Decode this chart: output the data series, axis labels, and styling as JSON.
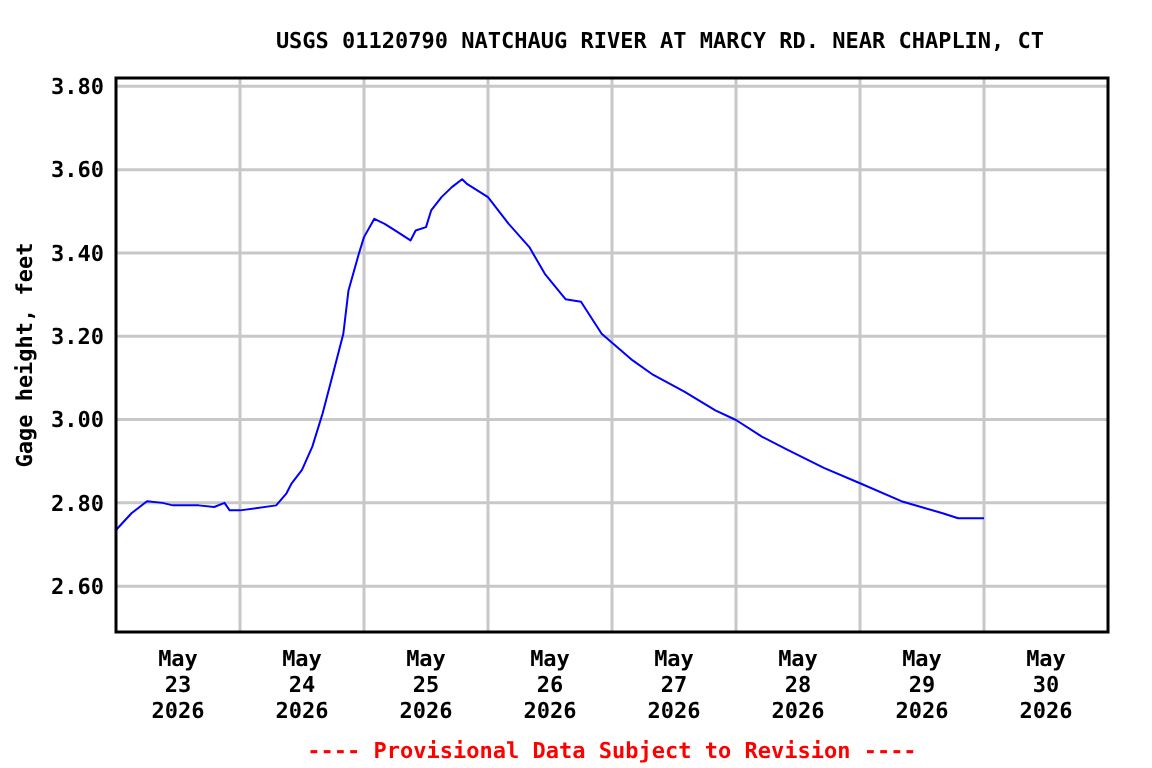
{
  "chart_data": {
    "type": "line",
    "title": "USGS 01120790 NATCHAUG RIVER AT MARCY RD. NEAR CHAPLIN, CT",
    "ylabel": "Gage height, feet",
    "annotations": [
      "---- Provisional Data Subject to Revision ----"
    ],
    "x": [
      "2026-05-23T00:00",
      "2026-05-23T03:00",
      "2026-05-23T06:00",
      "2026-05-23T09:00",
      "2026-05-23T11:00",
      "2026-05-23T16:00",
      "2026-05-23T19:00",
      "2026-05-23T21:00",
      "2026-05-23T22:00",
      "2026-05-24T00:00",
      "2026-05-24T07:00",
      "2026-05-24T09:00",
      "2026-05-24T10:00",
      "2026-05-24T12:00",
      "2026-05-24T14:00",
      "2026-05-24T16:00",
      "2026-05-24T18:00",
      "2026-05-24T20:00",
      "2026-05-24T21:00",
      "2026-05-24T23:00",
      "2026-05-25T00:00",
      "2026-05-25T02:00",
      "2026-05-25T04:00",
      "2026-05-25T06:00",
      "2026-05-25T09:00",
      "2026-05-25T10:00",
      "2026-05-25T12:00",
      "2026-05-25T13:00",
      "2026-05-25T15:00",
      "2026-05-25T17:00",
      "2026-05-25T19:00",
      "2026-05-25T20:00",
      "2026-05-26T00:00",
      "2026-05-26T04:00",
      "2026-05-26T08:00",
      "2026-05-26T11:00",
      "2026-05-26T15:00",
      "2026-05-26T18:00",
      "2026-05-26T22:00",
      "2026-05-27T04:00",
      "2026-05-27T08:00",
      "2026-05-27T14:00",
      "2026-05-27T20:00",
      "2026-05-28T00:00",
      "2026-05-28T05:00",
      "2026-05-28T10:00",
      "2026-05-28T17:00",
      "2026-05-29T00:00",
      "2026-05-29T08:00",
      "2026-05-29T16:00",
      "2026-05-29T19:00",
      "2026-05-30T00:00"
    ],
    "series": [
      {
        "color": "#0000ff",
        "values": [
          2.735,
          2.775,
          2.804,
          2.8,
          2.794,
          2.794,
          2.79,
          2.8,
          2.782,
          2.782,
          2.794,
          2.823,
          2.847,
          2.879,
          2.935,
          3.015,
          3.11,
          3.206,
          3.31,
          3.398,
          3.438,
          3.482,
          3.47,
          3.454,
          3.43,
          3.454,
          3.462,
          3.502,
          3.534,
          3.558,
          3.577,
          3.565,
          3.534,
          3.47,
          3.414,
          3.35,
          3.289,
          3.283,
          3.206,
          3.142,
          3.107,
          3.067,
          3.022,
          2.999,
          2.959,
          2.927,
          2.884,
          2.847,
          2.804,
          2.775,
          2.763,
          2.763
        ]
      }
    ],
    "xlim": [
      "2026-05-23T00:00",
      "2026-05-31T00:00"
    ],
    "xticks": [
      {
        "value": "2026-05-24T00:00",
        "label": null
      },
      {
        "value": "2026-05-25T00:00",
        "label": null
      },
      {
        "value": "2026-05-26T00:00",
        "label": null
      },
      {
        "value": "2026-05-27T00:00",
        "label": null
      },
      {
        "value": "2026-05-28T00:00",
        "label": null
      },
      {
        "value": "2026-05-29T00:00",
        "label": null
      },
      {
        "value": "2026-05-30T00:00",
        "label": null
      },
      {
        "value": "2026-05-23T12:00",
        "label": "May\n23\n2026"
      },
      {
        "value": "2026-05-24T12:00",
        "label": "May\n24\n2026"
      },
      {
        "value": "2026-05-25T12:00",
        "label": "May\n25\n2026"
      },
      {
        "value": "2026-05-26T12:00",
        "label": "May\n26\n2026"
      },
      {
        "value": "2026-05-27T12:00",
        "label": "May\n27\n2026"
      },
      {
        "value": "2026-05-28T12:00",
        "label": "May\n28\n2026"
      },
      {
        "value": "2026-05-29T12:00",
        "label": "May\n29\n2026"
      },
      {
        "value": "2026-05-30T12:00",
        "label": "May\n30\n2026"
      }
    ],
    "ylim": [
      2.49,
      3.82
    ],
    "yticks": [
      {
        "value": 2.6,
        "label": "2.60"
      },
      {
        "value": 2.8,
        "label": "2.80"
      },
      {
        "value": 3.0,
        "label": "3.00"
      },
      {
        "value": 3.2,
        "label": "3.20"
      },
      {
        "value": 3.4,
        "label": "3.40"
      },
      {
        "value": 3.6,
        "label": "3.60"
      },
      {
        "value": 3.8,
        "label": "3.80"
      }
    ],
    "grid": true,
    "line_style": "solid"
  }
}
